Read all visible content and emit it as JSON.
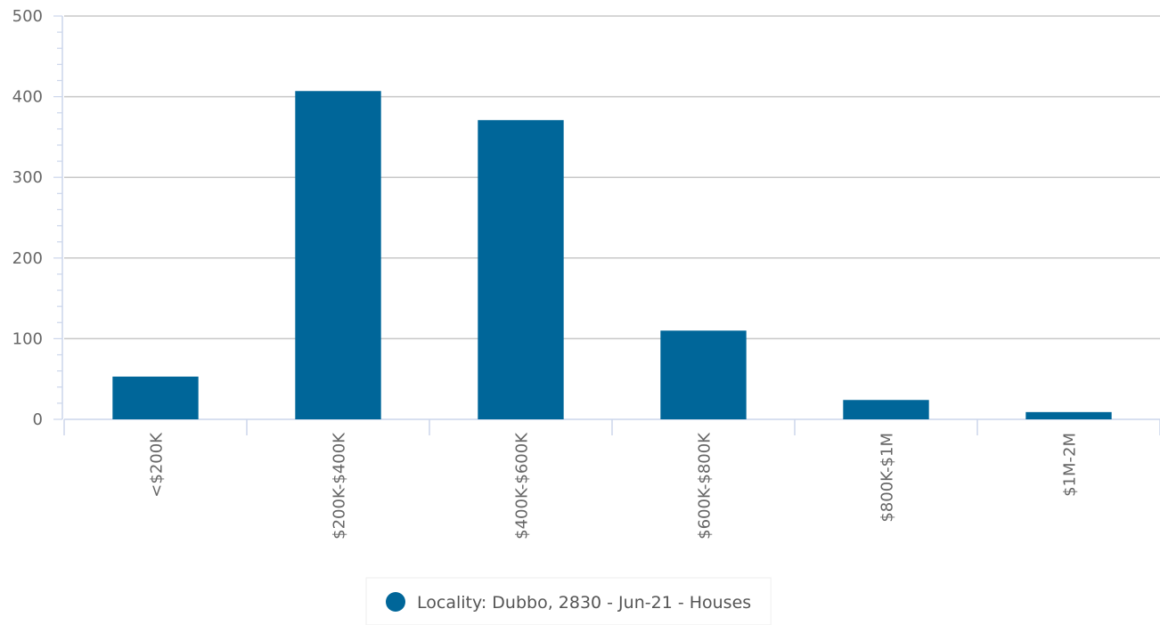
{
  "chart_data": {
    "type": "bar",
    "categories": [
      "<$200K",
      "$200K-$400K",
      "$400K-$600K",
      "$600K-$800K",
      "$800K-$1M",
      "$1M-2M"
    ],
    "series": [
      {
        "name": "Locality: Dubbo, 2830 - Jun-21 - Houses",
        "values": [
          53,
          407,
          371,
          110,
          24,
          9
        ]
      }
    ],
    "y_ticks": [
      "0",
      "100",
      "200",
      "300",
      "400",
      "500"
    ],
    "ylim": [
      0,
      500
    ],
    "grid": true,
    "legend_position": "bottom-center",
    "colors": {
      "bar": "#006699",
      "grid": "#c8c8c8",
      "axis": "#ccd6eb"
    }
  }
}
